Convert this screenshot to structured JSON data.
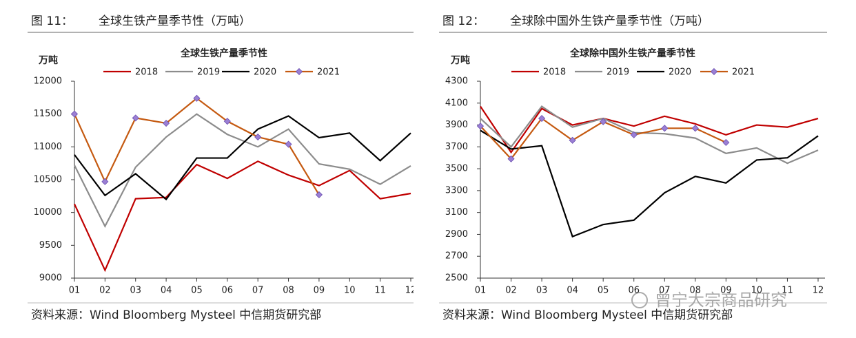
{
  "figures": [
    {
      "number": "图 11：",
      "caption": "全球生铁产量季节性（万吨）",
      "source": "资料来源：Wind Bloomberg Mysteel 中信期货研究部"
    },
    {
      "number": "图 12：",
      "caption": "全球除中国外生铁产量季节性（万吨）",
      "source": "资料来源：Wind Bloomberg Mysteel 中信期货研究部"
    }
  ],
  "watermark": "曾宁大宗商品研究",
  "chart_data": [
    {
      "type": "line",
      "title": "全球生铁产量季节性",
      "y_label": "万吨",
      "categories": [
        "01",
        "02",
        "03",
        "04",
        "05",
        "06",
        "07",
        "08",
        "09",
        "10",
        "11",
        "12"
      ],
      "ylim": [
        9000,
        12000
      ],
      "yticks": [
        9000,
        9500,
        10000,
        10500,
        11000,
        11500,
        12000
      ],
      "series": [
        {
          "name": "2018",
          "color": "#c00000",
          "values": [
            10130,
            9120,
            10210,
            10230,
            10730,
            10520,
            10780,
            10570,
            10410,
            10640,
            10210,
            10290
          ]
        },
        {
          "name": "2019",
          "color": "#8c8c8c",
          "values": [
            10720,
            9790,
            10690,
            11150,
            11500,
            11190,
            11000,
            11270,
            10740,
            10660,
            10430,
            10710
          ]
        },
        {
          "name": "2020",
          "color": "#000000",
          "values": [
            10880,
            10260,
            10590,
            10200,
            10830,
            10830,
            11270,
            11470,
            11140,
            11210,
            10790,
            11210
          ]
        },
        {
          "name": "2021",
          "color": "#c55a11",
          "marker": "diamond",
          "marker_color": "#9b7fd4",
          "values": [
            11500,
            10470,
            11440,
            11360,
            11740,
            11390,
            11150,
            11040,
            10270,
            null,
            null,
            null
          ]
        }
      ]
    },
    {
      "type": "line",
      "title": "全球除中国外生铁产量季节性",
      "y_label": "万吨",
      "categories": [
        "01",
        "02",
        "03",
        "04",
        "05",
        "06",
        "07",
        "08",
        "09",
        "10",
        "11",
        "12"
      ],
      "ylim": [
        2500,
        4300
      ],
      "yticks": [
        2500,
        2700,
        2900,
        3100,
        3300,
        3500,
        3700,
        3900,
        4100,
        4300
      ],
      "series": [
        {
          "name": "2018",
          "color": "#c00000",
          "values": [
            4070,
            3650,
            4050,
            3900,
            3960,
            3890,
            3980,
            3910,
            3810,
            3900,
            3880,
            3960
          ]
        },
        {
          "name": "2019",
          "color": "#8c8c8c",
          "values": [
            3960,
            3700,
            4070,
            3880,
            3960,
            3830,
            3820,
            3780,
            3640,
            3690,
            3550,
            3670
          ]
        },
        {
          "name": "2020",
          "color": "#000000",
          "values": [
            3850,
            3680,
            3710,
            2880,
            2990,
            3030,
            3280,
            3430,
            3370,
            3580,
            3600,
            3800
          ]
        },
        {
          "name": "2021",
          "color": "#c55a11",
          "marker": "diamond",
          "marker_color": "#9b7fd4",
          "values": [
            3890,
            3590,
            3960,
            3760,
            3930,
            3810,
            3870,
            3870,
            3740,
            null,
            null,
            null
          ]
        }
      ]
    }
  ]
}
